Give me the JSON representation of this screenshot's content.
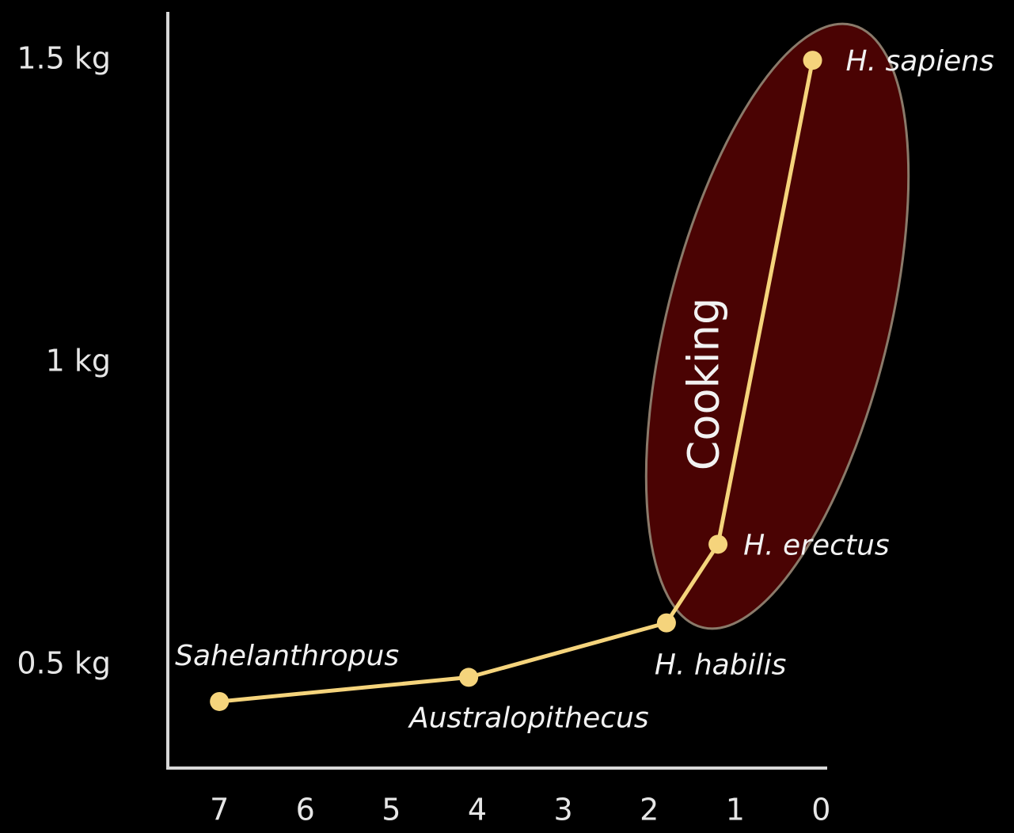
{
  "chart_data": {
    "type": "line",
    "x": [
      7,
      4.1,
      1.8,
      1.2,
      0.1
    ],
    "point_labels": [
      "Sahelanthropus",
      "Australopithecus",
      "H. habilis",
      "H. erectus",
      "H. sapiens"
    ],
    "series": [
      {
        "color": "#f5d47c",
        "values": [
          0.44,
          0.48,
          0.57,
          0.7,
          1.5
        ]
      }
    ],
    "xlim": [
      7.6,
      -0.07
    ],
    "xticks": [
      7,
      6,
      5,
      4,
      3,
      2,
      1,
      0
    ],
    "ylim": [
      0.33,
      1.58
    ],
    "yticks": [
      {
        "value": 0.5,
        "label": "0.5 kg"
      },
      {
        "value": 1,
        "label": "1 kg"
      },
      {
        "value": 1.5,
        "label": "1.5 kg"
      }
    ],
    "annotation": "Cooking"
  }
}
